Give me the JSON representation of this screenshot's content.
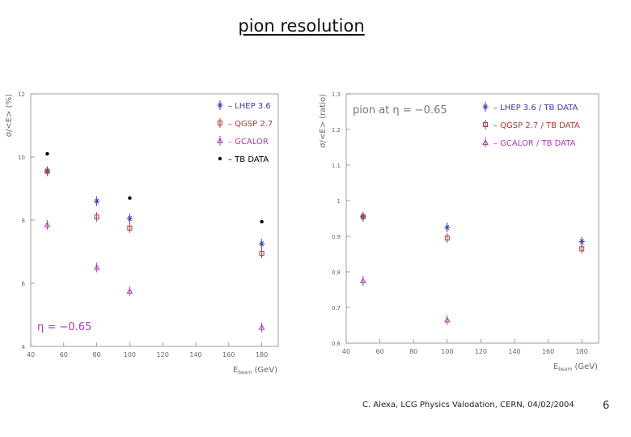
{
  "slide": {
    "title": "pion resolution",
    "footer": "C. Alexa, LCG Physics Valodation, CERN, 04/02/2004",
    "page_number": "6"
  },
  "chart_data": [
    {
      "type": "scatter",
      "title": "",
      "xlabel": "E_beam (GeV)",
      "ylabel": "σ/<E> (%)",
      "xlim": [
        40,
        190
      ],
      "ylim": [
        4,
        12
      ],
      "xticks": [
        40,
        60,
        80,
        100,
        120,
        140,
        160,
        180
      ],
      "yticks": [
        4,
        6,
        8,
        10,
        12
      ],
      "ytick_labels": [
        "4",
        "6",
        "8",
        "10",
        "12"
      ],
      "annotation": "η = −0.65",
      "grid": false,
      "legend_position": "top-right",
      "series": [
        {
          "name": "LHEP 3.6",
          "marker": "star",
          "color": "#3a3ab0",
          "x": [
            50,
            80,
            100,
            180
          ],
          "y": [
            9.55,
            8.6,
            8.05,
            7.25
          ]
        },
        {
          "name": "QGSP 2.7",
          "marker": "square",
          "color": "#b03a3a",
          "x": [
            50,
            80,
            100,
            180
          ],
          "y": [
            9.55,
            8.1,
            7.75,
            6.95
          ]
        },
        {
          "name": "GCALOR",
          "marker": "triangle",
          "color": "#b03ab0",
          "x": [
            50,
            80,
            100,
            180
          ],
          "y": [
            7.85,
            6.5,
            5.75,
            4.6
          ]
        },
        {
          "name": "TB DATA",
          "marker": "dot",
          "color": "#000000",
          "x": [
            50,
            100,
            180
          ],
          "y": [
            10.1,
            8.7,
            7.95
          ]
        }
      ]
    },
    {
      "type": "scatter",
      "title": "pion at η = −0.65",
      "xlabel": "E_beam (GeV)",
      "ylabel": "σ/<E> (ratio)",
      "xlim": [
        40,
        190
      ],
      "ylim": [
        0.6,
        1.3
      ],
      "xticks": [
        40,
        60,
        80,
        100,
        120,
        140,
        160,
        180
      ],
      "yticks": [
        0.6,
        0.7,
        0.8,
        0.9,
        1.0,
        1.1,
        1.2,
        1.3
      ],
      "ytick_labels": [
        "0.6",
        "0.7",
        "0.8",
        "0.9",
        "1",
        "1.1",
        "1.2",
        "1.3"
      ],
      "grid": false,
      "legend_position": "top-right",
      "series": [
        {
          "name": "LHEP 3.6 / TB DATA",
          "marker": "star",
          "color": "#3a3ab0",
          "x": [
            50,
            100,
            180
          ],
          "y": [
            0.955,
            0.925,
            0.885
          ]
        },
        {
          "name": "QGSP 2.7 / TB DATA",
          "marker": "square",
          "color": "#b03a3a",
          "x": [
            50,
            100,
            180
          ],
          "y": [
            0.955,
            0.895,
            0.865
          ]
        },
        {
          "name": "GCALOR / TB DATA",
          "marker": "triangle",
          "color": "#b03ab0",
          "x": [
            50,
            100,
            180
          ],
          "y": [
            0.775,
            0.665,
            null
          ]
        }
      ]
    }
  ]
}
